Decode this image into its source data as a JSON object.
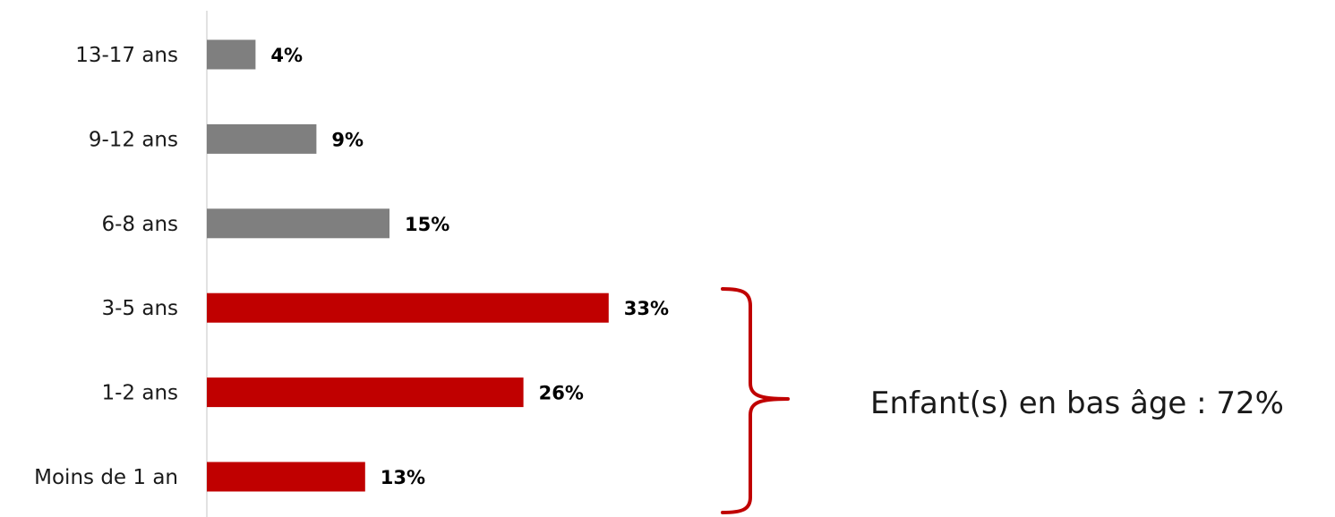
{
  "chart_data": {
    "type": "bar",
    "orientation": "horizontal",
    "categories": [
      "13-17 ans",
      "9-12 ans",
      "6-8 ans",
      "3-5 ans",
      "1-2 ans",
      "Moins de 1 an"
    ],
    "values": [
      4,
      9,
      15,
      33,
      26,
      13
    ],
    "value_labels": [
      "4%",
      "9%",
      "15%",
      "33%",
      "26%",
      "13%"
    ],
    "bar_colors": [
      "#7f7f7f",
      "#7f7f7f",
      "#7f7f7f",
      "#c00000",
      "#c00000",
      "#c00000"
    ],
    "xlim": [
      0,
      45
    ],
    "grid": false,
    "legend": "none",
    "annotation": {
      "text": "Enfant(s) en bas âge : 72%",
      "bracket_color": "#c00000",
      "covers_categories": [
        "3-5 ans",
        "1-2 ans",
        "Moins de 1 an"
      ]
    }
  }
}
